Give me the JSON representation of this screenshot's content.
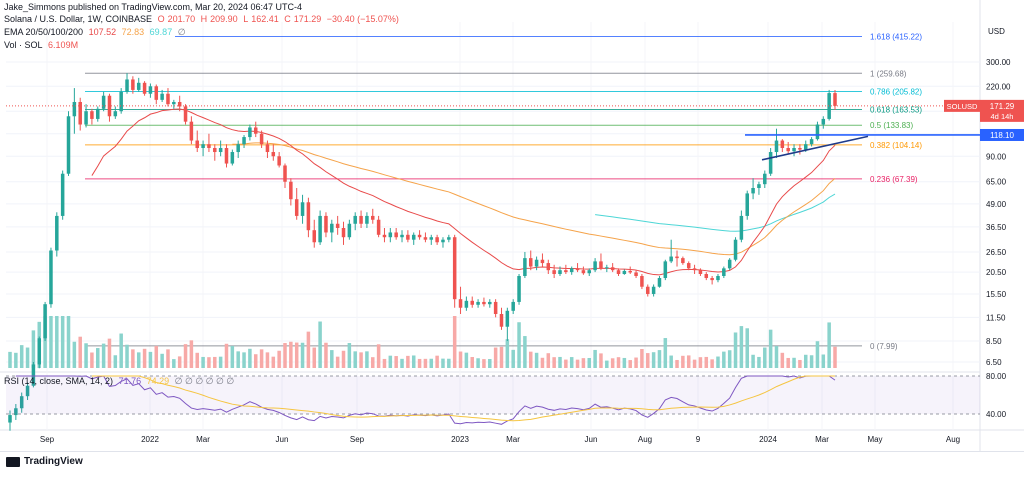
{
  "top_note": "Jake_Simmons published on TradingView.com, Mar 20, 2024 06:47 UTC-4",
  "header": {
    "symbol": "Solana / U.S. Dollar, 1W, COINBASE",
    "o_label": "O",
    "o": "201.70",
    "h_label": "H",
    "h": "209.90",
    "l_label": "L",
    "l": "162.41",
    "c_label": "C",
    "c": "171.29",
    "change": "−30.40 (−15.07%)",
    "ema_label": "EMA 20/50/100/200",
    "ema20": "107.52",
    "ema50": "72.83",
    "ema100": "69.87",
    "ema200": "∅",
    "vol_label": "Vol · SOL",
    "vol": "6.109M",
    "rsi_label": "RSI (14, close, SMA, 14, 2)",
    "rsi": "71.76",
    "rsi_sma": "74.29",
    "rsi_empty": "∅ ∅ ∅ ∅ ∅ ∅"
  },
  "footer": {
    "brand": "TradingView"
  },
  "colors": {
    "up": "#26a69a",
    "down": "#ef5350",
    "vol_up": "#8ad3cc",
    "vol_down": "#f7a9a7",
    "ema20": "#e84a4a",
    "ema50": "#f5a34a",
    "ema100": "#4dd6d6",
    "rsi": "#7e57c2",
    "rsi_sma": "#f5c542",
    "trend": "#2962ff"
  },
  "chart_data": {
    "type": "candlestick",
    "symbol": "SOLUSD",
    "timeframe": "1W",
    "price_axis": {
      "scale": "log",
      "ticks": [
        300.0,
        220.0,
        160.0,
        120.0,
        90.0,
        65.0,
        49.0,
        36.5,
        26.5,
        20.5,
        15.5,
        11.5,
        8.5,
        6.5
      ],
      "current_label": "SOLUSD",
      "current_value": "171.29",
      "countdown": "4d 14h",
      "line_label_value": "118.10",
      "currency": "USD"
    },
    "time_axis": [
      "Sep",
      "2022",
      "Mar",
      "Jun",
      "Sep",
      "2023",
      "Mar",
      "Jun",
      "Aug",
      "9",
      "2024",
      "Mar",
      "May",
      "Aug"
    ],
    "fib_levels": [
      {
        "ratio": "1.618",
        "price": "415.22",
        "color": "#2962ff"
      },
      {
        "ratio": "1",
        "price": "259.68",
        "color": "#787b86"
      },
      {
        "ratio": "0.786",
        "price": "205.82",
        "color": "#00bcd4"
      },
      {
        "ratio": "0.618",
        "price": "163.53",
        "color": "#089981"
      },
      {
        "ratio": "0.5",
        "price": "133.83",
        "color": "#4caf50"
      },
      {
        "ratio": "0.382",
        "price": "104.14",
        "color": "#ff9800"
      },
      {
        "ratio": "0.236",
        "price": "67.39",
        "color": "#e91e63"
      },
      {
        "ratio": "0",
        "price": "7.99",
        "color": "#787b86"
      }
    ],
    "candles": [
      [
        3.0,
        3.5,
        2.7,
        3.3
      ],
      [
        3.3,
        3.8,
        3.1,
        3.6
      ],
      [
        3.6,
        4.4,
        3.4,
        4.2
      ],
      [
        4.2,
        5.0,
        4.0,
        4.8
      ],
      [
        4.8,
        6.5,
        4.7,
        6.3
      ],
      [
        6.3,
        9.0,
        6.0,
        8.8
      ],
      [
        8.8,
        14.0,
        8.5,
        13.6
      ],
      [
        13.6,
        28.0,
        13.0,
        27.0
      ],
      [
        27.0,
        44.0,
        25.0,
        42.0
      ],
      [
        42.0,
        75.0,
        40.0,
        72.0
      ],
      [
        72.0,
        160.0,
        70.0,
        150.0
      ],
      [
        150.0,
        215.0,
        120.0,
        180.0
      ],
      [
        180.0,
        190.0,
        125.0,
        135.0
      ],
      [
        135.0,
        175.0,
        130.0,
        160.0
      ],
      [
        160.0,
        165.0,
        135.0,
        145.0
      ],
      [
        145.0,
        170.0,
        140.0,
        165.0
      ],
      [
        165.0,
        205.0,
        160.0,
        195.0
      ],
      [
        195.0,
        200.0,
        140.0,
        150.0
      ],
      [
        150.0,
        170.0,
        145.0,
        160.0
      ],
      [
        160.0,
        215.0,
        155.0,
        205.0
      ],
      [
        205.0,
        260.0,
        200.0,
        240.0
      ],
      [
        240.0,
        250.0,
        200.0,
        210.0
      ],
      [
        210.0,
        245.0,
        205.0,
        230.0
      ],
      [
        230.0,
        235.0,
        195.0,
        200.0
      ],
      [
        200.0,
        228.0,
        190.0,
        220.0
      ],
      [
        220.0,
        225.0,
        175.0,
        185.0
      ],
      [
        185.0,
        210.0,
        180.0,
        200.0
      ],
      [
        200.0,
        215.0,
        170.0,
        175.0
      ],
      [
        175.0,
        185.0,
        165.0,
        180.0
      ],
      [
        180.0,
        195.0,
        160.0,
        170.0
      ],
      [
        170.0,
        175.0,
        135.0,
        140.0
      ],
      [
        140.0,
        150.0,
        105.0,
        110.0
      ],
      [
        110.0,
        125.0,
        95.0,
        100.0
      ],
      [
        100.0,
        110.0,
        90.0,
        105.0
      ],
      [
        105.0,
        120.0,
        95.0,
        100.0
      ],
      [
        100.0,
        105.0,
        85.0,
        95.0
      ],
      [
        95.0,
        110.0,
        90.0,
        100.0
      ],
      [
        100.0,
        105.0,
        78.0,
        82.0
      ],
      [
        82.0,
        98.0,
        80.0,
        95.0
      ],
      [
        95.0,
        110.0,
        88.0,
        105.0
      ],
      [
        105.0,
        118.0,
        100.0,
        115.0
      ],
      [
        115.0,
        135.0,
        110.0,
        130.0
      ],
      [
        130.0,
        140.0,
        115.0,
        120.0
      ],
      [
        120.0,
        125.0,
        100.0,
        105.0
      ],
      [
        105.0,
        110.0,
        88.0,
        95.0
      ],
      [
        95.0,
        105.0,
        85.0,
        90.0
      ],
      [
        90.0,
        95.0,
        78.0,
        80.0
      ],
      [
        80.0,
        82.0,
        60.0,
        65.0
      ],
      [
        65.0,
        68.0,
        48.0,
        52.0
      ],
      [
        52.0,
        60.0,
        40.0,
        42.0
      ],
      [
        42.0,
        55.0,
        38.0,
        50.0
      ],
      [
        50.0,
        53.0,
        32.0,
        35.0
      ],
      [
        35.0,
        40.0,
        28.0,
        30.0
      ],
      [
        30.0,
        45.0,
        29.0,
        42.0
      ],
      [
        42.0,
        44.0,
        32.0,
        34.0
      ],
      [
        34.0,
        40.0,
        30.0,
        38.0
      ],
      [
        38.0,
        42.0,
        33.0,
        36.0
      ],
      [
        36.0,
        39.0,
        29.0,
        32.0
      ],
      [
        32.0,
        40.0,
        31.0,
        38.0
      ],
      [
        38.0,
        44.0,
        35.0,
        42.0
      ],
      [
        42.0,
        45.0,
        36.0,
        38.0
      ],
      [
        38.0,
        44.0,
        36.0,
        42.0
      ],
      [
        42.0,
        46.0,
        38.0,
        40.0
      ],
      [
        40.0,
        42.0,
        32.0,
        33.0
      ],
      [
        33.0,
        36.0,
        30.0,
        32.0
      ],
      [
        32.0,
        36.0,
        30.0,
        34.0
      ],
      [
        34.0,
        36.0,
        31.0,
        32.0
      ],
      [
        32.0,
        35.0,
        30.0,
        33.0
      ],
      [
        33.0,
        35.0,
        30.0,
        31.0
      ],
      [
        31.0,
        34.0,
        29.0,
        33.0
      ],
      [
        33.0,
        35.0,
        31.0,
        32.0
      ],
      [
        32.0,
        34.0,
        30.0,
        31.0
      ],
      [
        31.0,
        33.0,
        29.0,
        32.0
      ],
      [
        32.0,
        33.0,
        29.0,
        30.0
      ],
      [
        30.0,
        32.0,
        28.0,
        31.0
      ],
      [
        31.0,
        33.0,
        30.0,
        32.0
      ],
      [
        32.0,
        33.0,
        13.0,
        14.5
      ],
      [
        14.5,
        17.0,
        12.0,
        13.0
      ],
      [
        13.0,
        15.0,
        12.5,
        14.2
      ],
      [
        14.2,
        15.0,
        13.0,
        13.5
      ],
      [
        13.5,
        14.5,
        13.0,
        14.0
      ],
      [
        14.0,
        14.8,
        13.2,
        13.6
      ],
      [
        13.6,
        14.5,
        13.0,
        14.0
      ],
      [
        14.0,
        14.5,
        11.5,
        12.0
      ],
      [
        12.0,
        13.0,
        9.8,
        10.2
      ],
      [
        10.2,
        13.0,
        8.5,
        12.5
      ],
      [
        12.5,
        14.5,
        12.0,
        14.0
      ],
      [
        14.0,
        20.0,
        13.5,
        19.5
      ],
      [
        19.5,
        26.5,
        19.0,
        24.5
      ],
      [
        24.5,
        27.0,
        21.0,
        22.0
      ],
      [
        22.0,
        25.0,
        21.0,
        24.0
      ],
      [
        24.0,
        26.0,
        22.0,
        23.0
      ],
      [
        23.0,
        24.0,
        20.0,
        21.0
      ],
      [
        21.0,
        22.5,
        19.0,
        20.0
      ],
      [
        20.0,
        22.0,
        19.5,
        21.0
      ],
      [
        21.0,
        22.5,
        20.0,
        20.5
      ],
      [
        20.5,
        22.0,
        19.8,
        21.5
      ],
      [
        21.5,
        23.0,
        20.5,
        21.0
      ],
      [
        21.0,
        22.0,
        19.8,
        20.2
      ],
      [
        20.2,
        21.5,
        19.5,
        21.0
      ],
      [
        21.0,
        24.5,
        20.5,
        23.5
      ],
      [
        23.5,
        26.0,
        21.0,
        21.5
      ],
      [
        21.5,
        22.5,
        20.5,
        21.8
      ],
      [
        21.8,
        23.0,
        20.5,
        21.0
      ],
      [
        21.0,
        21.5,
        19.5,
        20.0
      ],
      [
        20.0,
        21.2,
        19.8,
        20.8
      ],
      [
        20.8,
        22.0,
        20.0,
        20.4
      ],
      [
        20.4,
        21.0,
        19.0,
        19.5
      ],
      [
        19.5,
        20.0,
        16.5,
        17.0
      ],
      [
        17.0,
        17.5,
        15.0,
        15.5
      ],
      [
        15.5,
        17.5,
        15.0,
        17.0
      ],
      [
        17.0,
        19.5,
        16.8,
        19.0
      ],
      [
        19.0,
        24.0,
        18.5,
        23.5
      ],
      [
        23.5,
        31.0,
        23.0,
        25.0
      ],
      [
        25.0,
        27.0,
        22.0,
        24.5
      ],
      [
        24.5,
        25.0,
        22.5,
        23.0
      ],
      [
        23.0,
        23.5,
        21.0,
        21.5
      ],
      [
        21.5,
        22.5,
        20.0,
        21.0
      ],
      [
        21.0,
        21.5,
        19.5,
        20.0
      ],
      [
        20.0,
        20.5,
        18.5,
        19.0
      ],
      [
        19.0,
        19.5,
        17.5,
        18.5
      ],
      [
        18.5,
        20.0,
        18.0,
        19.5
      ],
      [
        19.5,
        22.0,
        19.0,
        21.5
      ],
      [
        21.5,
        24.5,
        21.0,
        24.0
      ],
      [
        24.0,
        32.0,
        23.5,
        31.0
      ],
      [
        31.0,
        45.0,
        30.0,
        42.0
      ],
      [
        42.0,
        58.0,
        40.0,
        56.0
      ],
      [
        56.0,
        68.0,
        52.0,
        60.0
      ],
      [
        60.0,
        65.0,
        55.0,
        63.0
      ],
      [
        63.0,
        75.0,
        60.0,
        72.0
      ],
      [
        72.0,
        100.0,
        70.0,
        95.0
      ],
      [
        95.0,
        128.0,
        88.0,
        110.0
      ],
      [
        110.0,
        112.0,
        95.0,
        100.0
      ],
      [
        100.0,
        108.0,
        92.0,
        96.0
      ],
      [
        96.0,
        105.0,
        90.0,
        100.0
      ],
      [
        100.0,
        105.0,
        92.0,
        98.0
      ],
      [
        98.0,
        110.0,
        95.0,
        105.0
      ],
      [
        105.0,
        115.0,
        102.0,
        112.0
      ],
      [
        112.0,
        140.0,
        110.0,
        135.0
      ],
      [
        135.0,
        150.0,
        128.0,
        145.0
      ],
      [
        145.0,
        210.0,
        142.0,
        201.7
      ],
      [
        201.7,
        209.9,
        162.41,
        171.29
      ]
    ],
    "volume_note": "Vol · SOL",
    "rsi_axis": {
      "ticks": [
        80.0,
        40.0
      ]
    }
  }
}
